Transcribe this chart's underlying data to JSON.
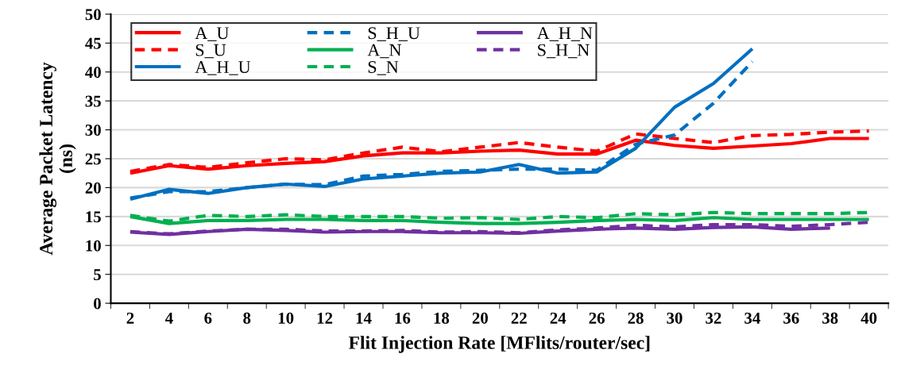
{
  "chart_data": {
    "type": "line",
    "xlabel": "Flit Injection Rate [MFlits/router/sec]",
    "ylabel": "Average Packet Latency\n(ns)",
    "categories": [
      "2",
      "4",
      "6",
      "8",
      "10",
      "12",
      "14",
      "16",
      "18",
      "20",
      "22",
      "24",
      "26",
      "28",
      "30",
      "32",
      "34",
      "36",
      "38",
      "40"
    ],
    "ylim": [
      0,
      50
    ],
    "yticks": [
      0,
      5,
      10,
      15,
      20,
      25,
      30,
      35,
      40,
      45,
      50
    ],
    "grid": "y",
    "legend": "top left",
    "series": [
      {
        "name": "A_U",
        "color": "#ff0000",
        "line_style": "solid",
        "values": [
          22.5,
          23.8,
          23.2,
          23.8,
          24.2,
          24.5,
          25.5,
          26,
          26,
          26.3,
          26.5,
          25.8,
          25.8,
          28.2,
          27.3,
          26.8,
          27.2,
          27.6,
          28.5,
          28.5
        ]
      },
      {
        "name": "S_U",
        "color": "#ff0000",
        "line_style": "dashed",
        "values": [
          22.8,
          24,
          23.5,
          24.3,
          25,
          24.8,
          26,
          27,
          26.2,
          27,
          27.8,
          27,
          26.3,
          29.3,
          28.5,
          27.8,
          29,
          29.2,
          29.6,
          29.8
        ]
      },
      {
        "name": "A_H_U",
        "color": "#0070c0",
        "line_style": "solid",
        "values": [
          18,
          19.7,
          19,
          20,
          20.6,
          20.2,
          21.5,
          22,
          22.5,
          22.7,
          24,
          22.5,
          22.7,
          26.8,
          33.9,
          38,
          44,
          null,
          null,
          null
        ]
      },
      {
        "name": "S_H_U",
        "color": "#0070c0",
        "line_style": "dashed",
        "values": [
          18.2,
          19.3,
          19.3,
          20,
          20.6,
          20.5,
          22,
          22.3,
          22.8,
          23,
          23.2,
          23.2,
          23,
          27.5,
          29.1,
          34.6,
          41.8,
          null,
          null,
          null
        ]
      },
      {
        "name": "A_N",
        "color": "#00b050",
        "line_style": "solid",
        "values": [
          15,
          13.8,
          14.3,
          14.3,
          14.5,
          14.5,
          14.3,
          14.3,
          14,
          13.8,
          13.8,
          14,
          14.3,
          14.5,
          14.3,
          14.8,
          14.5,
          14.5,
          14.5,
          14.5
        ]
      },
      {
        "name": "S_N",
        "color": "#00b050",
        "line_style": "dashed",
        "values": [
          15.2,
          14.2,
          15.2,
          15,
          15.3,
          15,
          15,
          15,
          14.7,
          14.8,
          14.5,
          15,
          14.8,
          15.5,
          15.3,
          15.7,
          15.5,
          15.5,
          15.5,
          15.7
        ]
      },
      {
        "name": "A_H_N",
        "color": "#7030a0",
        "line_style": "solid",
        "values": [
          12.3,
          11.9,
          12.4,
          12.8,
          12.6,
          12.3,
          12.4,
          12.4,
          12.2,
          12.2,
          12.1,
          12.5,
          12.8,
          13,
          12.8,
          13.1,
          13.2,
          12.8,
          13,
          null
        ]
      },
      {
        "name": "S_H_N",
        "color": "#7030a0",
        "line_style": "dashed",
        "values": [
          12.4,
          12,
          12.5,
          12.8,
          12.8,
          12.5,
          12.5,
          12.6,
          12.3,
          12.4,
          12.2,
          12.7,
          13,
          13.5,
          13.2,
          13.6,
          13.6,
          13.3,
          13.6,
          14
        ]
      }
    ]
  }
}
